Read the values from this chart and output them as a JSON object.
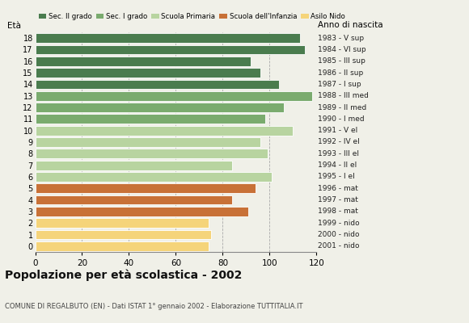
{
  "ages": [
    18,
    17,
    16,
    15,
    14,
    13,
    12,
    11,
    10,
    9,
    8,
    7,
    6,
    5,
    4,
    3,
    2,
    1,
    0
  ],
  "values": [
    113,
    115,
    92,
    96,
    104,
    118,
    106,
    98,
    110,
    96,
    99,
    84,
    101,
    94,
    84,
    91,
    74,
    75,
    74
  ],
  "anno_nascita": [
    "1983 - V sup",
    "1984 - VI sup",
    "1985 - III sup",
    "1986 - II sup",
    "1987 - I sup",
    "1988 - III med",
    "1989 - II med",
    "1990 - I med",
    "1991 - V el",
    "1992 - IV el",
    "1993 - III el",
    "1994 - II el",
    "1995 - I el",
    "1996 - mat",
    "1997 - mat",
    "1998 - mat",
    "1999 - nido",
    "2000 - nido",
    "2001 - nido"
  ],
  "colors": [
    "#4a7c4e",
    "#4a7c4e",
    "#4a7c4e",
    "#4a7c4e",
    "#4a7c4e",
    "#7aab6e",
    "#7aab6e",
    "#7aab6e",
    "#b8d4a0",
    "#b8d4a0",
    "#b8d4a0",
    "#b8d4a0",
    "#b8d4a0",
    "#c87137",
    "#c87137",
    "#c87137",
    "#f5d47a",
    "#f5d47a",
    "#f5d47a"
  ],
  "legend_labels": [
    "Sec. II grado",
    "Sec. I grado",
    "Scuola Primaria",
    "Scuola dell'Infanzia",
    "Asilo Nido"
  ],
  "legend_colors": [
    "#4a7c4e",
    "#7aab6e",
    "#b8d4a0",
    "#c87137",
    "#f5d47a"
  ],
  "title": "Popolazione per età scolastica - 2002",
  "subtitle": "COMUNE DI REGALBUTO (EN) - Dati ISTAT 1° gennaio 2002 - Elaborazione TUTTITALIA.IT",
  "ylabel_left": "Età",
  "ylabel_right": "Anno di nascita",
  "xlim": [
    0,
    120
  ],
  "xticks": [
    0,
    20,
    40,
    60,
    80,
    100,
    120
  ],
  "grid_color": "#aaaaaa",
  "bg_color": "#f0f0e8"
}
